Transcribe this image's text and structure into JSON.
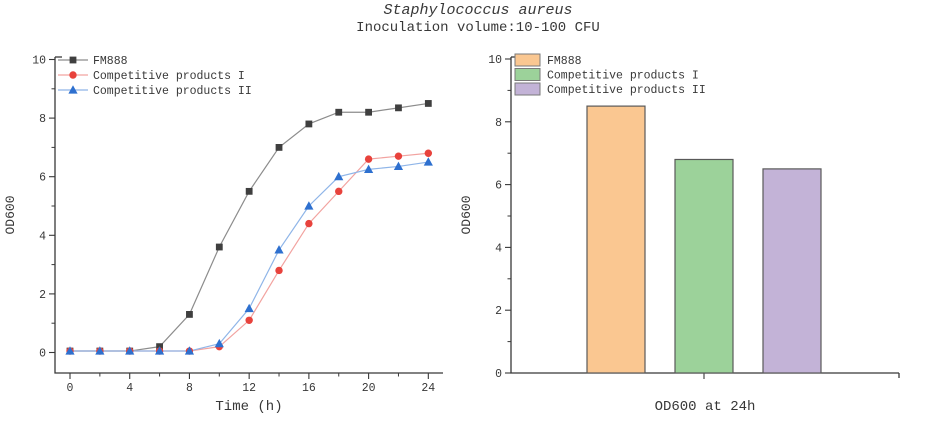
{
  "title": {
    "main": "Staphylococcus aureus",
    "subtitle": "Inoculation volume:10-100 CFU"
  },
  "colors": {
    "axis": "#383838",
    "background": "#ffffff",
    "fm888_marker": "#3f3f3f",
    "fm888_line": "#8c8c8c",
    "comp1_marker": "#e8423c",
    "comp1_line": "#f2a3a0",
    "comp2_marker": "#2e70cf",
    "comp2_line": "#8fb5e8",
    "bar_orange": "#fac791",
    "bar_green": "#9cd29a",
    "bar_purple": "#c3b3d7",
    "bar_edge": "#595959"
  },
  "chart_data": [
    {
      "type": "line",
      "title": "",
      "xlabel": "Time (h)",
      "ylabel": "OD600",
      "xlim": [
        -1,
        25
      ],
      "ylim": [
        -0.8,
        10
      ],
      "xticks_major": [
        0,
        4,
        8,
        12,
        16,
        20,
        24
      ],
      "xticks_minor": [
        2,
        6,
        10,
        14,
        18,
        22
      ],
      "yticks_major": [
        0,
        2,
        4,
        6,
        8,
        10
      ],
      "yticks_minor": [
        1,
        3,
        5,
        7,
        9
      ],
      "grid": false,
      "legend_position": "top-left",
      "x": [
        0,
        2,
        4,
        6,
        8,
        10,
        12,
        14,
        16,
        18,
        20,
        22,
        24
      ],
      "series": [
        {
          "name": "FM888",
          "marker": "square",
          "marker_color": "#3f3f3f",
          "line_color": "#8c8c8c",
          "values": [
            0.05,
            0.05,
            0.05,
            0.2,
            1.3,
            3.6,
            5.5,
            7.0,
            7.8,
            8.2,
            8.2,
            8.35,
            8.5
          ]
        },
        {
          "name": "Competitive products I",
          "marker": "circle",
          "marker_color": "#e8423c",
          "line_color": "#f2a3a0",
          "values": [
            0.05,
            0.05,
            0.05,
            0.05,
            0.05,
            0.2,
            1.1,
            2.8,
            4.4,
            5.5,
            6.6,
            6.7,
            6.8
          ]
        },
        {
          "name": "Competitive products II",
          "marker": "triangle",
          "marker_color": "#2e70cf",
          "line_color": "#8fb5e8",
          "values": [
            0.05,
            0.05,
            0.05,
            0.05,
            0.05,
            0.3,
            1.5,
            3.5,
            5.0,
            6.0,
            6.25,
            6.35,
            6.5
          ]
        }
      ]
    },
    {
      "type": "bar",
      "title": "",
      "xlabel": "OD600 at 24h",
      "ylabel": "OD600",
      "ylim": [
        0,
        10
      ],
      "yticks_major": [
        0,
        2,
        4,
        6,
        8,
        10
      ],
      "yticks_minor": [
        1,
        3,
        5,
        7,
        9
      ],
      "grid": false,
      "legend_position": "top-left",
      "categories": [
        "FM888",
        "Competitive products I",
        "Competitive products II"
      ],
      "values": [
        8.5,
        6.8,
        6.5
      ],
      "bar_colors": [
        "#fac791",
        "#9cd29a",
        "#c3b3d7"
      ],
      "bar_edge_color": "#595959",
      "legend_swatch_border": "#7a7a7a"
    }
  ]
}
